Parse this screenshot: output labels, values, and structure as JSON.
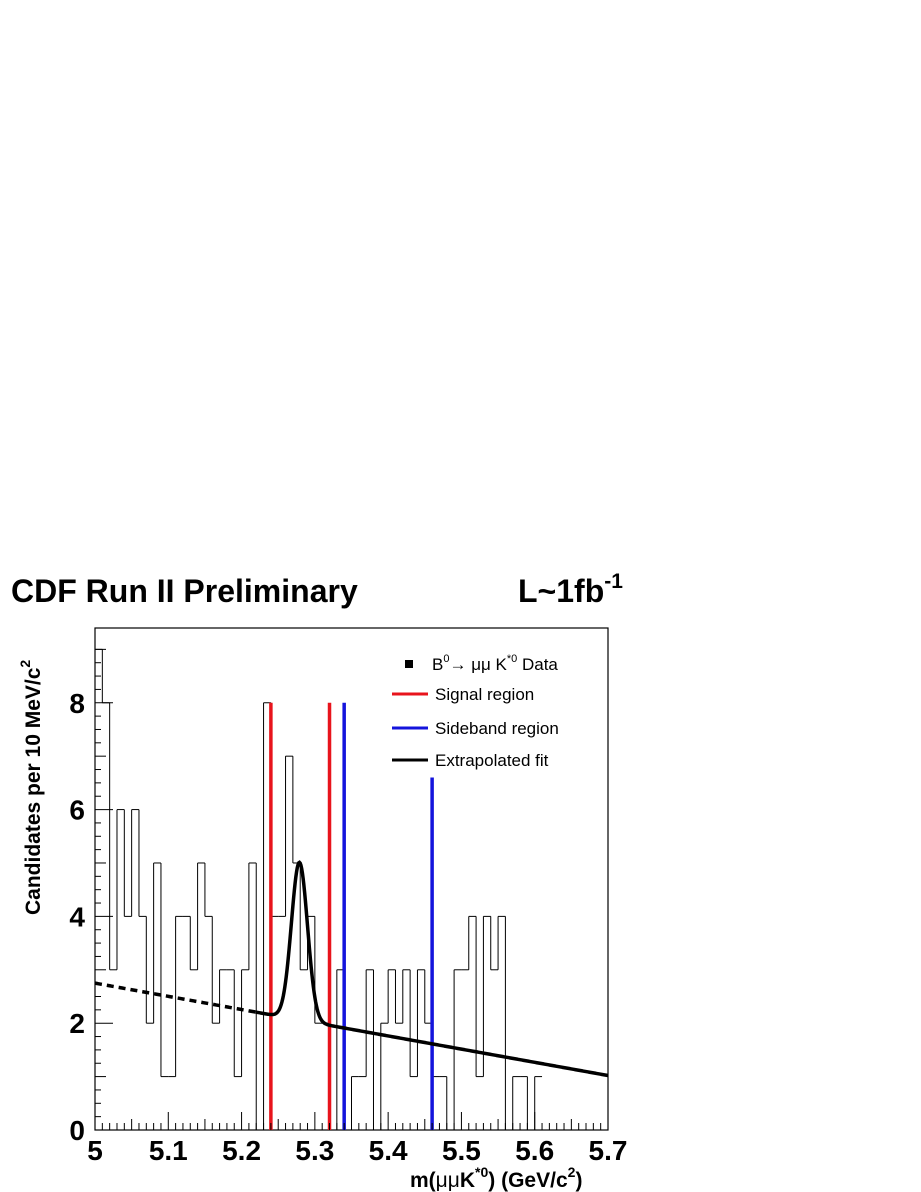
{
  "chart_data": {
    "type": "bar",
    "title": "CDF Run II Preliminary",
    "luminosity_label": {
      "text": "L~1fb",
      "sup": "-1"
    },
    "xlabel": {
      "pre": "m(",
      "mu": "μμ",
      "k": "K",
      "sup_star": "*0",
      "mid": ") (GeV/c",
      "sup2": "2",
      "post": ")"
    },
    "ylabel": {
      "text": "Candidates per 10 MeV/c",
      "sup": "2"
    },
    "xlim": [
      5.0,
      5.7
    ],
    "ylim": [
      0,
      9.4
    ],
    "x_ticks": [
      "5",
      "5.1",
      "5.2",
      "5.3",
      "5.4",
      "5.5",
      "5.6",
      "5.7"
    ],
    "y_ticks": [
      "0",
      "2",
      "4",
      "6",
      "8"
    ],
    "bin_width": 0.01,
    "series": [
      {
        "name": "B0 → μμ K*0 Data",
        "bin_edges_start": 5.0,
        "values": [
          9,
          8,
          3,
          6,
          4,
          6,
          4,
          2,
          5,
          1,
          1,
          4,
          4,
          3,
          5,
          4,
          2,
          3,
          3,
          1,
          3,
          5,
          0,
          8,
          4,
          4,
          7,
          5,
          3,
          4,
          2,
          2,
          0,
          3,
          0,
          1,
          1,
          3,
          0,
          2,
          3,
          2,
          3,
          1,
          3,
          2,
          1,
          1,
          0,
          3,
          3,
          4,
          1,
          4,
          3,
          4,
          0,
          1,
          1,
          0,
          1
        ]
      }
    ],
    "fit": {
      "name": "Extrapolated fit",
      "background": {
        "x": [
          5.0,
          5.7
        ],
        "y": [
          2.75,
          1.02
        ]
      },
      "gaussian": {
        "mean": 5.279,
        "sigma": 0.011,
        "amplitude": 2.95
      },
      "dashed_until": 5.22,
      "color": "#000000"
    },
    "vlines": [
      {
        "name": "Signal region",
        "x": 5.24,
        "ymax": 8.0,
        "color": "#e8141c"
      },
      {
        "name": "Signal region",
        "x": 5.32,
        "ymax": 8.0,
        "color": "#e8141c"
      },
      {
        "name": "Sideband region",
        "x": 5.34,
        "ymax": 8.0,
        "color": "#1414dc"
      },
      {
        "name": "Sideband region",
        "x": 5.46,
        "ymax": 6.6,
        "color": "#1414dc"
      }
    ],
    "legend": {
      "position": "top-right",
      "entries": [
        {
          "kind": "marker",
          "pre": "B",
          "sup0": "0",
          "arrow": "→",
          "mu": " μμ  K",
          "sup": "*0",
          "post": " Data",
          "color": "#000000"
        },
        {
          "kind": "line",
          "label": "Signal region",
          "color": "#e8141c"
        },
        {
          "kind": "line",
          "label": "Sideband region",
          "color": "#1414dc"
        },
        {
          "kind": "line",
          "label": "Extrapolated fit",
          "color": "#000000"
        }
      ]
    }
  }
}
